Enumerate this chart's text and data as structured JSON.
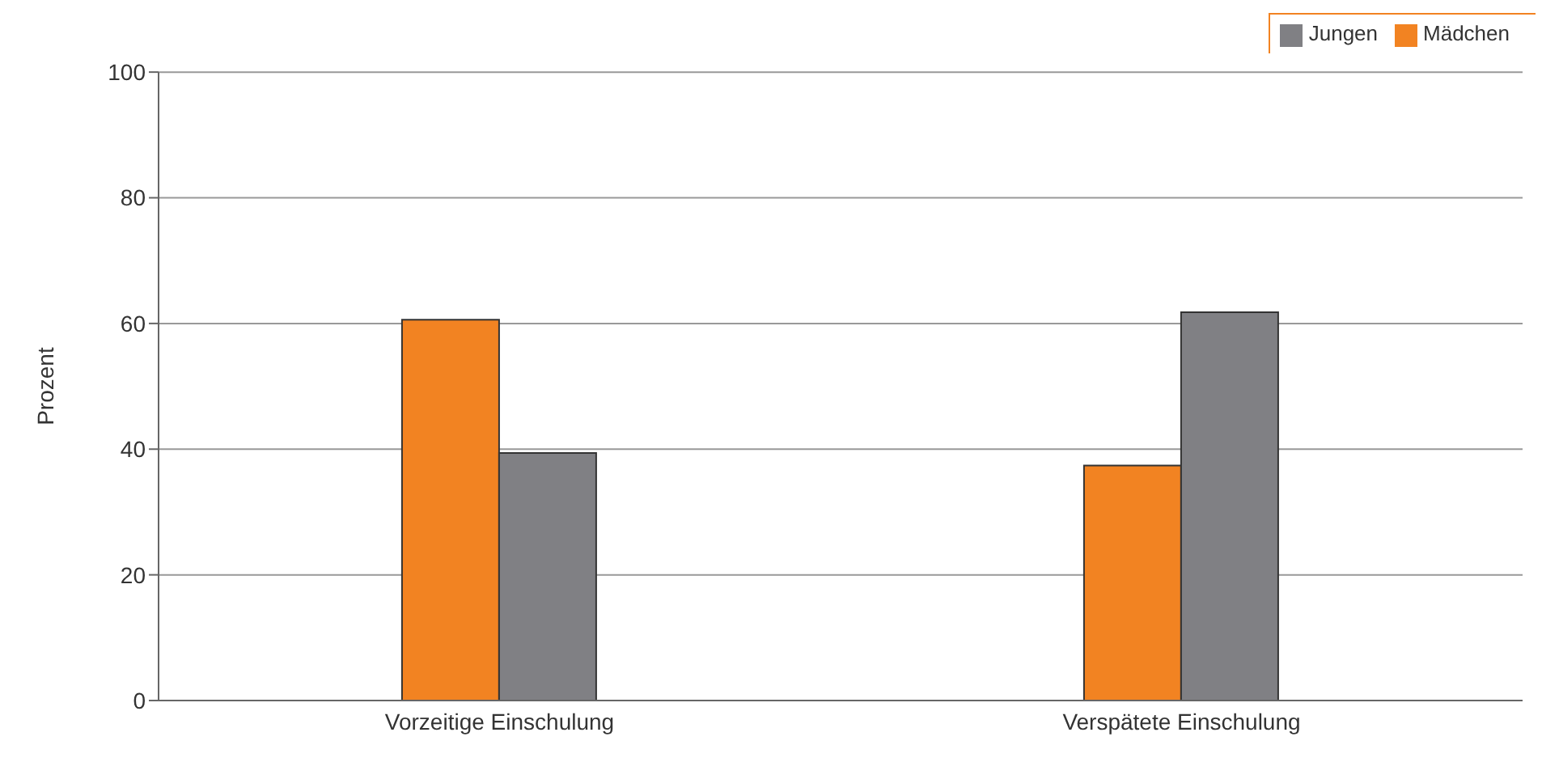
{
  "chart_data": {
    "type": "bar",
    "ylabel": "Prozent",
    "categories": [
      "Vorzeitige Einschulung",
      "Verspätete Einschulung"
    ],
    "series": [
      {
        "name": "Mädchen",
        "color": "#f28322",
        "values": [
          60.6,
          37.4
        ]
      },
      {
        "name": "Jungen",
        "color": "#808084",
        "values": [
          39.4,
          61.8
        ]
      }
    ],
    "ylim": [
      0,
      100
    ],
    "yticks": [
      0,
      20,
      40,
      60,
      80,
      100
    ],
    "grid": "y",
    "legend": "top right"
  }
}
